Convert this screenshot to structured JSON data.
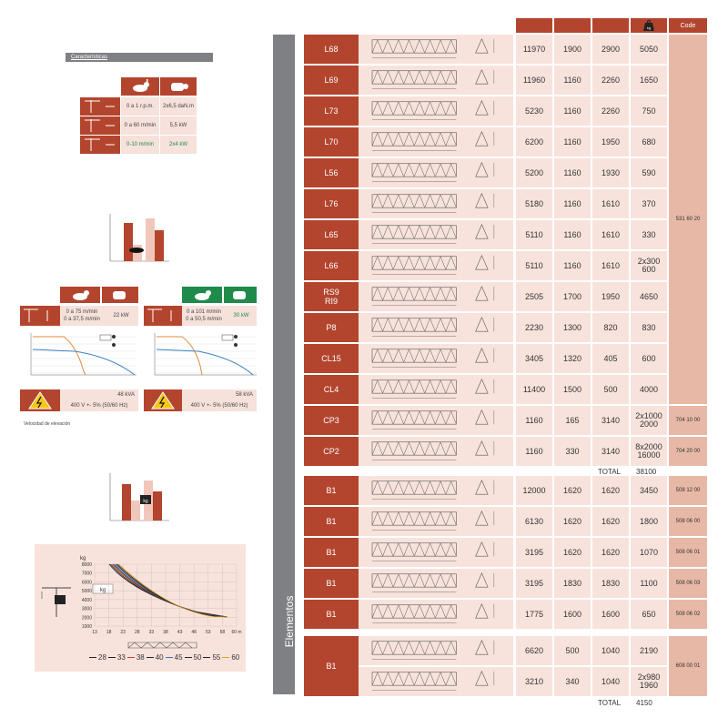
{
  "characteristics": {
    "title": "Características",
    "rows": [
      {
        "speed": "0 a 1 r.p.m.",
        "power": "2x6,5 daN.m",
        "green": false
      },
      {
        "speed": "0 a 60 m/min",
        "power": "5,5 kW",
        "green": false
      },
      {
        "speed": "0-10 m/min",
        "power": "2x4 kW",
        "green": true
      }
    ]
  },
  "hoist": {
    "left": {
      "speed1": "0 a 75 m/min",
      "speed2": "0 a 37,5 m/min",
      "power": "22 kW",
      "kva": "48 kVA",
      "voltage": "400 V +- 5% (50/60 Hz)"
    },
    "right": {
      "speed1": "0 a 101 m/min",
      "speed2": "0 a 50,5 m/min",
      "power": "30 kW",
      "kva": "58 kVA",
      "voltage": "400 V +- 5% (50/60 Hz)"
    },
    "note": "Velocidad de elevación"
  },
  "load_chart": {
    "y_unit": "kg",
    "y_ticks": [
      "8000",
      "7000",
      "6000",
      "5000",
      "4000",
      "3000",
      "2000",
      "1000"
    ],
    "x_ticks": [
      "13",
      "18",
      "23",
      "28",
      "33",
      "38",
      "43",
      "48",
      "53",
      "58",
      "60 m"
    ],
    "legend": [
      {
        "label": "28",
        "color": "#222222"
      },
      {
        "label": "33",
        "color": "#222222"
      },
      {
        "label": "38",
        "color": "#b3452e"
      },
      {
        "label": "40",
        "color": "#222222"
      },
      {
        "label": "45",
        "color": "#3b6fb6"
      },
      {
        "label": "50",
        "color": "#222222"
      },
      {
        "label": "55",
        "color": "#222222"
      },
      {
        "label": "60",
        "color": "#e0a020"
      }
    ],
    "weight_label": "kg"
  },
  "table": {
    "side_label": "Elementos",
    "header": {
      "code": "Code",
      "weight_icon": "kg"
    },
    "group1": [
      {
        "name": "L68",
        "a": "11970",
        "b": "1900",
        "c": "2900",
        "w": "5050"
      },
      {
        "name": "L69",
        "a": "11960",
        "b": "1160",
        "c": "2260",
        "w": "1650"
      },
      {
        "name": "L73",
        "a": "5230",
        "b": "1160",
        "c": "2260",
        "w": "750"
      },
      {
        "name": "L70",
        "a": "6200",
        "b": "1160",
        "c": "1950",
        "w": "680"
      },
      {
        "name": "L56",
        "a": "5200",
        "b": "1160",
        "c": "1930",
        "w": "590"
      },
      {
        "name": "L76",
        "a": "5180",
        "b": "1160",
        "c": "1610",
        "w": "370"
      },
      {
        "name": "L65",
        "a": "5110",
        "b": "1160",
        "c": "1610",
        "w": "330"
      },
      {
        "name": "L66",
        "a": "5110",
        "b": "1160",
        "c": "1610",
        "w": "2x300\n600"
      },
      {
        "name": "RS9\nRI9",
        "a": "2505",
        "b": "1700",
        "c": "1950",
        "w": "4650"
      },
      {
        "name": "P8",
        "a": "2230",
        "b": "1300",
        "c": "820",
        "w": "830"
      },
      {
        "name": "CL15",
        "a": "3405",
        "b": "1320",
        "c": "405",
        "w": "600"
      },
      {
        "name": "CL4",
        "a": "11400",
        "b": "1500",
        "c": "500",
        "w": "4000"
      },
      {
        "name": "CP3",
        "a": "1160",
        "b": "165",
        "c": "3140",
        "w": "2x1000\n2000"
      },
      {
        "name": "CP2",
        "a": "1160",
        "b": "330",
        "c": "3140",
        "w": "8x2000\n16000"
      }
    ],
    "group1_codes": {
      "main": "531 60 20",
      "cp3": "704 10 00",
      "cp2": "704 20 00"
    },
    "total1": {
      "label": "TOTAL",
      "value": "38100"
    },
    "group2": [
      {
        "name": "B1",
        "a": "12000",
        "b": "1620",
        "c": "1620",
        "w": "3450",
        "code": "508 12 00"
      },
      {
        "name": "B1",
        "a": "6130",
        "b": "1620",
        "c": "1620",
        "w": "1800",
        "code": "508 06 00"
      },
      {
        "name": "B1",
        "a": "3195",
        "b": "1620",
        "c": "1620",
        "w": "1070",
        "code": "508 06 01"
      },
      {
        "name": "B1",
        "a": "3195",
        "b": "1830",
        "c": "1830",
        "w": "1100",
        "code": "508 06 03"
      },
      {
        "name": "B1",
        "a": "1775",
        "b": "1600",
        "c": "1600",
        "w": "650",
        "code": "508 06 02"
      }
    ],
    "group3": {
      "name": "B1",
      "rows": [
        {
          "a": "6620",
          "b": "500",
          "c": "1040",
          "w": "2190"
        },
        {
          "a": "3210",
          "b": "340",
          "c": "1040",
          "w": "2x980\n1960"
        }
      ],
      "code": "608 00 01"
    },
    "total2": {
      "label": "TOTAL",
      "value": "4150"
    }
  }
}
